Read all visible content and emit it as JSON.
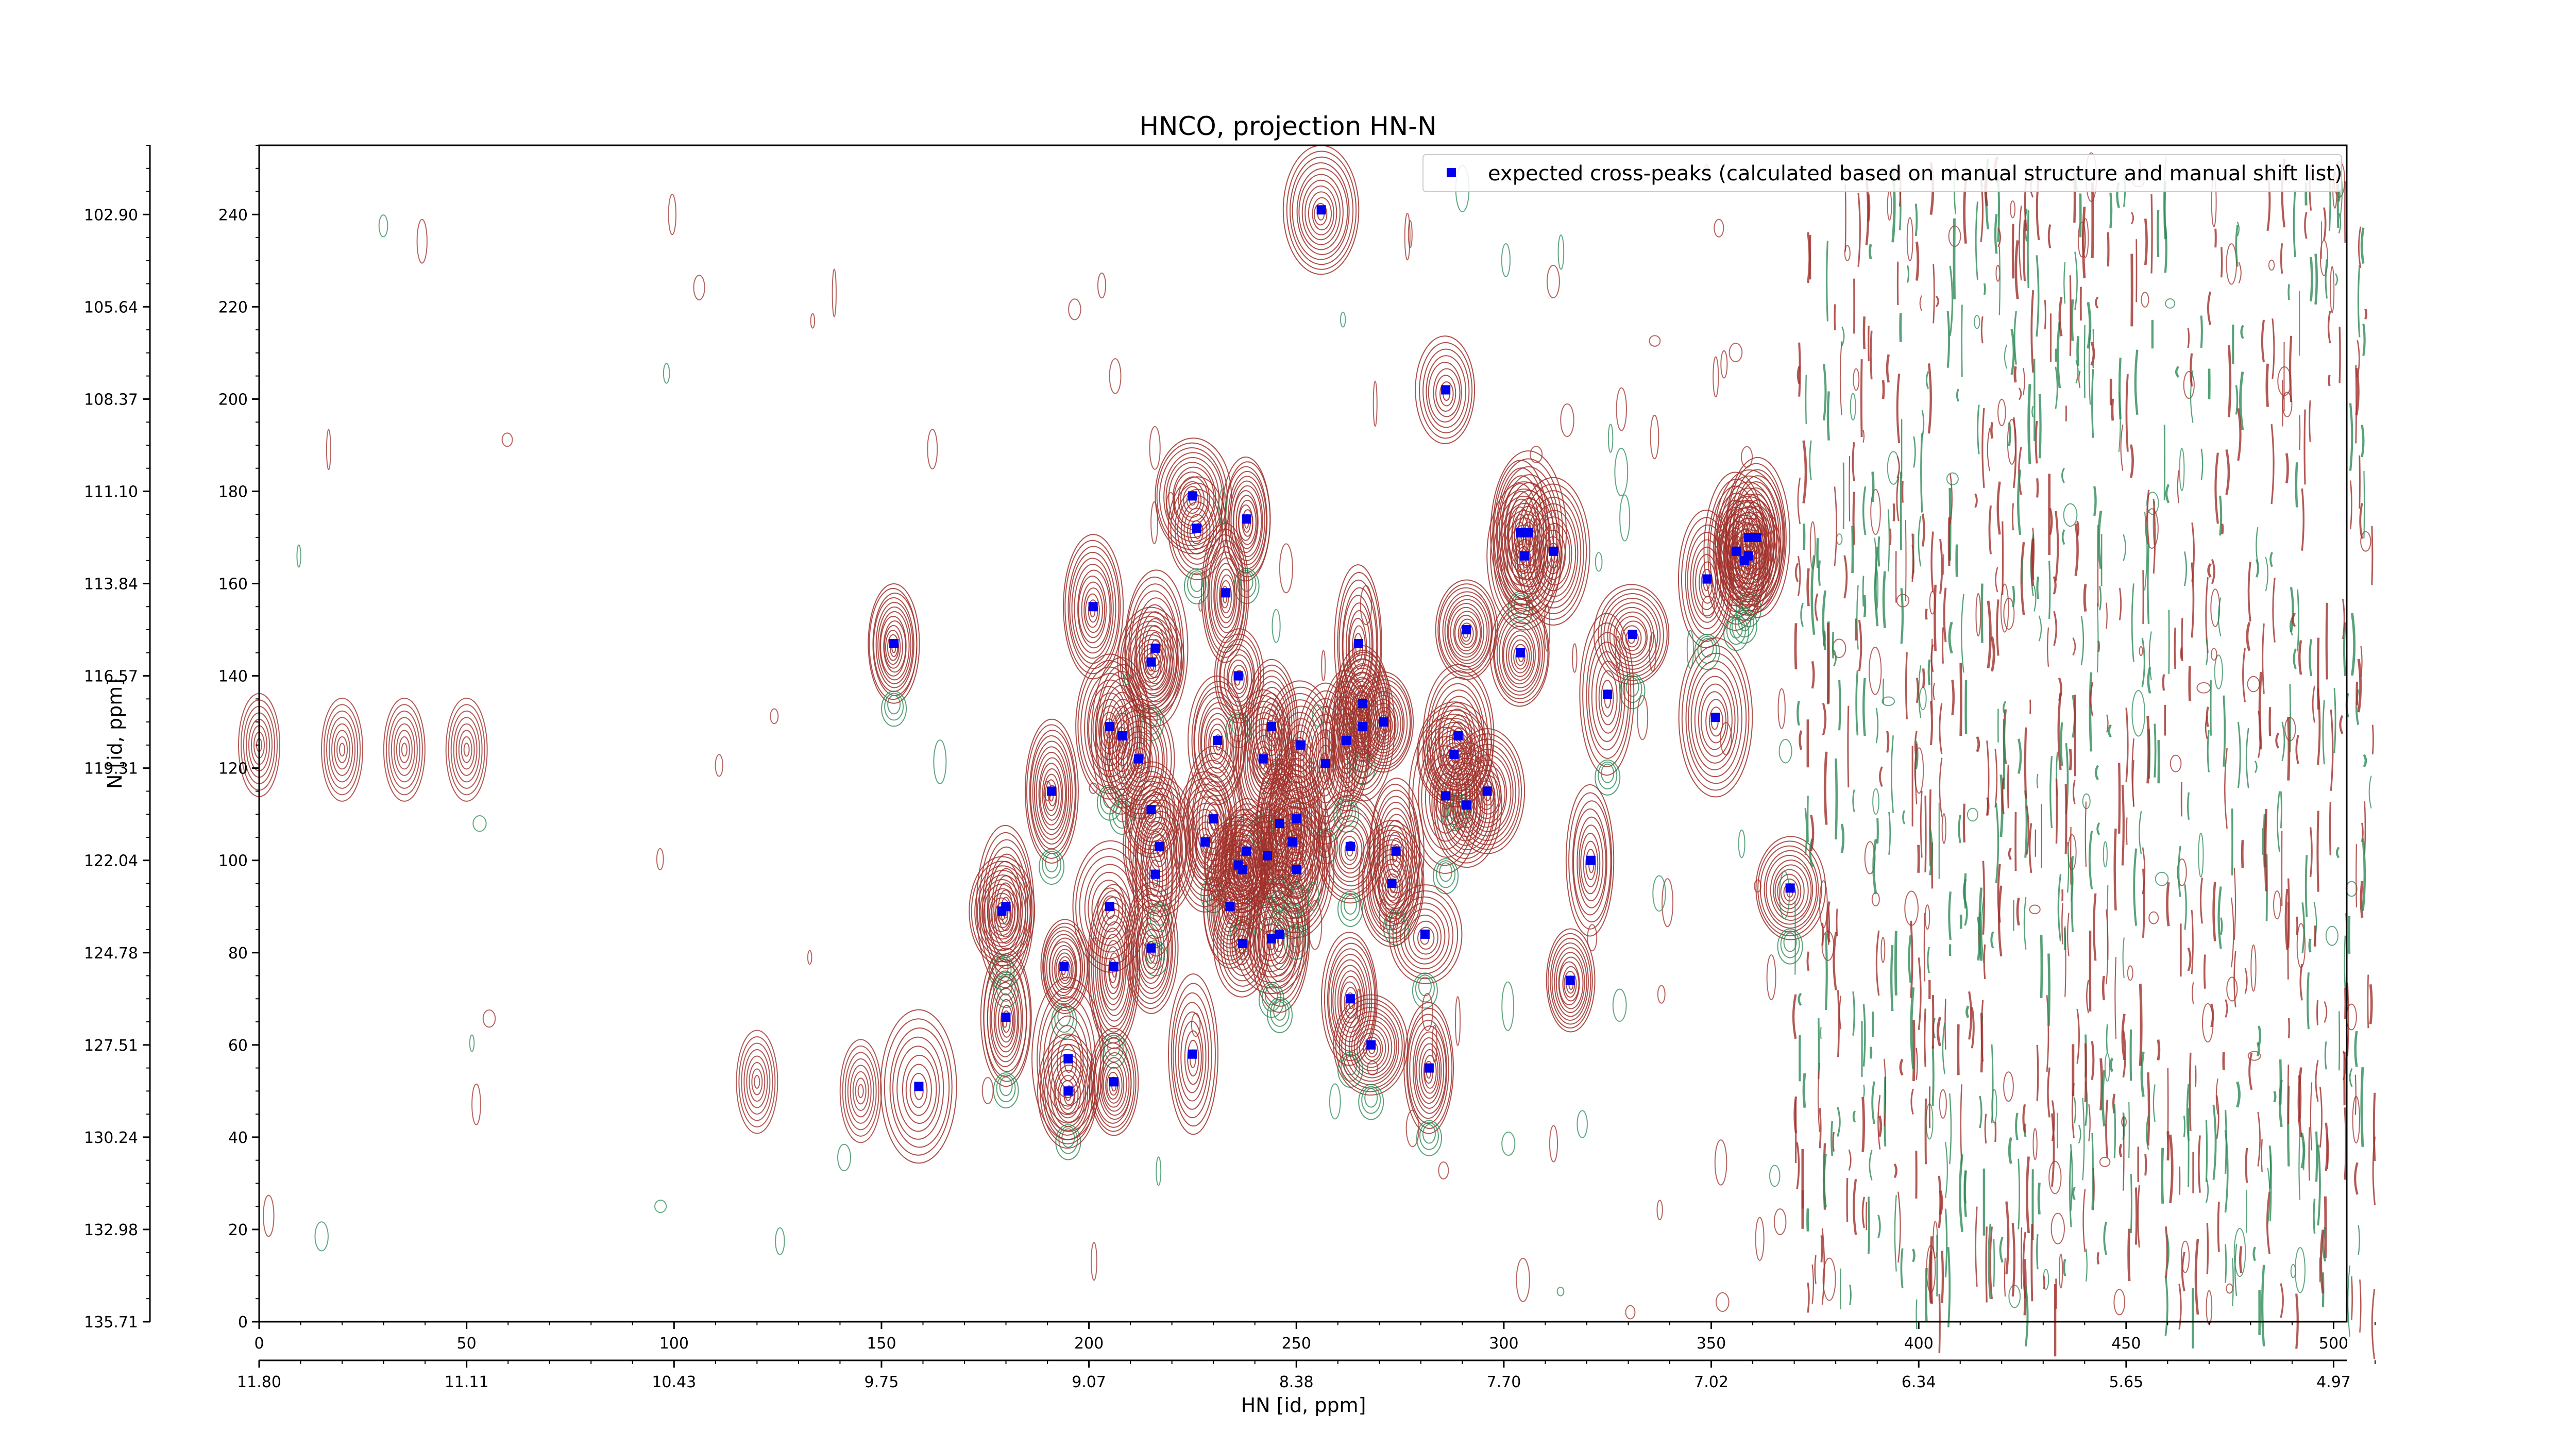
{
  "chart_data": {
    "type": "scatter",
    "title": "HNCO, projection HN-N",
    "xlabel": "HN [id, ppm]",
    "ylabel": "N [id, ppm]",
    "xlim": [
      0,
      511
    ],
    "ylim": [
      0,
      255
    ],
    "x_index_ticks": [
      0,
      50,
      100,
      150,
      200,
      250,
      300,
      350,
      400,
      450,
      500
    ],
    "x_ppm_ticks": [
      "11.80",
      "11.11",
      "10.43",
      "9.75",
      "9.07",
      "8.38",
      "7.70",
      "7.02",
      "6.34",
      "5.65",
      "4.97"
    ],
    "y_index_ticks": [
      0,
      20,
      40,
      60,
      80,
      100,
      120,
      140,
      160,
      180,
      200,
      220,
      240
    ],
    "y_ppm_ticks": [
      "135.71",
      "132.98",
      "130.24",
      "127.51",
      "124.78",
      "122.04",
      "119.31",
      "116.57",
      "113.84",
      "111.10",
      "108.37",
      "105.64",
      "102.90"
    ],
    "legend": {
      "position": "top-right",
      "label": "expected cross-peaks (calculated based on manual structure and manual shift list)",
      "color": "#0000ee"
    },
    "contour_colors": {
      "positive": "#a0302a",
      "negative": "#2e8b57"
    },
    "grid": false,
    "series": [
      {
        "name": "expected cross-peaks (calculated based on manual structure and manual shift list)",
        "points": [
          {
            "x": 256,
            "y": 241
          },
          {
            "x": 286,
            "y": 202
          },
          {
            "x": 225,
            "y": 179
          },
          {
            "x": 226,
            "y": 172
          },
          {
            "x": 238,
            "y": 174
          },
          {
            "x": 304,
            "y": 171
          },
          {
            "x": 306,
            "y": 171
          },
          {
            "x": 305,
            "y": 166
          },
          {
            "x": 312,
            "y": 167
          },
          {
            "x": 356,
            "y": 167
          },
          {
            "x": 359,
            "y": 170
          },
          {
            "x": 361,
            "y": 170
          },
          {
            "x": 359,
            "y": 166
          },
          {
            "x": 358,
            "y": 165
          },
          {
            "x": 349,
            "y": 161
          },
          {
            "x": 233,
            "y": 158
          },
          {
            "x": 201,
            "y": 155
          },
          {
            "x": 153,
            "y": 147
          },
          {
            "x": 216,
            "y": 146
          },
          {
            "x": 215,
            "y": 143
          },
          {
            "x": 265,
            "y": 147
          },
          {
            "x": 291,
            "y": 150
          },
          {
            "x": 304,
            "y": 145
          },
          {
            "x": 331,
            "y": 149
          },
          {
            "x": 236,
            "y": 140
          },
          {
            "x": 266,
            "y": 134
          },
          {
            "x": 325,
            "y": 136
          },
          {
            "x": 351,
            "y": 131
          },
          {
            "x": 205,
            "y": 129
          },
          {
            "x": 208,
            "y": 127
          },
          {
            "x": 212,
            "y": 122
          },
          {
            "x": 231,
            "y": 126
          },
          {
            "x": 244,
            "y": 129
          },
          {
            "x": 251,
            "y": 125
          },
          {
            "x": 257,
            "y": 121
          },
          {
            "x": 262,
            "y": 126
          },
          {
            "x": 266,
            "y": 129
          },
          {
            "x": 271,
            "y": 130
          },
          {
            "x": 242,
            "y": 122
          },
          {
            "x": 288,
            "y": 123
          },
          {
            "x": 289,
            "y": 127
          },
          {
            "x": 191,
            "y": 115
          },
          {
            "x": 286,
            "y": 114
          },
          {
            "x": 291,
            "y": 112
          },
          {
            "x": 296,
            "y": 115
          },
          {
            "x": 215,
            "y": 111
          },
          {
            "x": 230,
            "y": 109
          },
          {
            "x": 246,
            "y": 108
          },
          {
            "x": 250,
            "y": 109
          },
          {
            "x": 228,
            "y": 104
          },
          {
            "x": 217,
            "y": 103
          },
          {
            "x": 249,
            "y": 104
          },
          {
            "x": 263,
            "y": 103
          },
          {
            "x": 274,
            "y": 102
          },
          {
            "x": 238,
            "y": 102
          },
          {
            "x": 243,
            "y": 101
          },
          {
            "x": 236,
            "y": 99
          },
          {
            "x": 237,
            "y": 98
          },
          {
            "x": 216,
            "y": 97
          },
          {
            "x": 250,
            "y": 98
          },
          {
            "x": 321,
            "y": 100
          },
          {
            "x": 369,
            "y": 94
          },
          {
            "x": 273,
            "y": 95
          },
          {
            "x": 179,
            "y": 89
          },
          {
            "x": 180,
            "y": 90
          },
          {
            "x": 205,
            "y": 90
          },
          {
            "x": 234,
            "y": 90
          },
          {
            "x": 237,
            "y": 82
          },
          {
            "x": 244,
            "y": 83
          },
          {
            "x": 246,
            "y": 84
          },
          {
            "x": 281,
            "y": 84
          },
          {
            "x": 194,
            "y": 77
          },
          {
            "x": 206,
            "y": 77
          },
          {
            "x": 215,
            "y": 81
          },
          {
            "x": 316,
            "y": 74
          },
          {
            "x": 263,
            "y": 70
          },
          {
            "x": 180,
            "y": 66
          },
          {
            "x": 225,
            "y": 58
          },
          {
            "x": 268,
            "y": 60
          },
          {
            "x": 195,
            "y": 57
          },
          {
            "x": 206,
            "y": 52
          },
          {
            "x": 195,
            "y": 50
          },
          {
            "x": 282,
            "y": 55
          },
          {
            "x": 159,
            "y": 51
          }
        ]
      }
    ]
  }
}
